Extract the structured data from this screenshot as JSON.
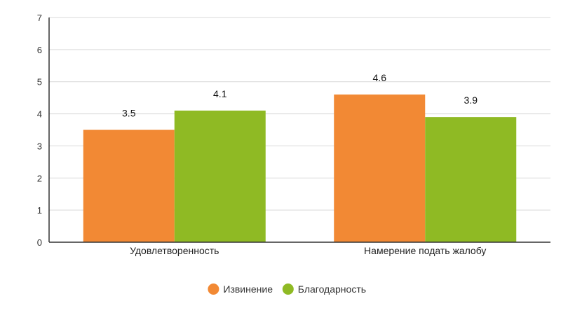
{
  "chart_data": {
    "type": "bar",
    "categories": [
      "Удовлетворенность",
      "Намерение подать жалобу"
    ],
    "series": [
      {
        "name": "Извинение",
        "color": "#f28934",
        "values": [
          3.5,
          4.6
        ]
      },
      {
        "name": "Благодарность",
        "color": "#8fba24",
        "values": [
          4.1,
          3.9
        ]
      }
    ],
    "ylim": [
      0,
      7
    ],
    "yticks": [
      0,
      1,
      2,
      3,
      4,
      5,
      6,
      7
    ],
    "grid": true,
    "legend_position": "bottom-center"
  }
}
